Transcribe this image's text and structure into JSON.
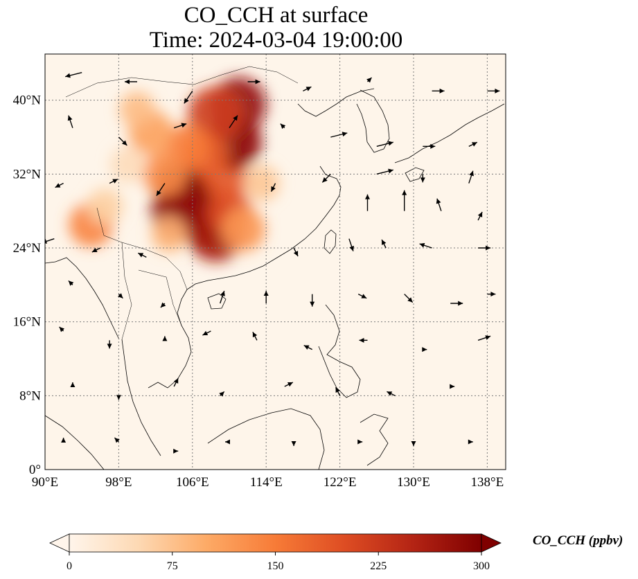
{
  "title": {
    "line1": "CO_CCH at surface",
    "line2": "Time: 2024-03-04 19:00:00"
  },
  "map": {
    "lon_range": [
      90,
      140
    ],
    "lat_range": [
      0,
      45
    ],
    "lon_ticks": [
      {
        "value": 90,
        "label": "90°E"
      },
      {
        "value": 98,
        "label": "98°E"
      },
      {
        "value": 106,
        "label": "106°E"
      },
      {
        "value": 114,
        "label": "114°E"
      },
      {
        "value": 122,
        "label": "122°E"
      },
      {
        "value": 130,
        "label": "130°E"
      },
      {
        "value": 138,
        "label": "138°E"
      }
    ],
    "lat_ticks": [
      {
        "value": 0,
        "label": "0°"
      },
      {
        "value": 8,
        "label": "8°N"
      },
      {
        "value": 16,
        "label": "16°N"
      },
      {
        "value": 24,
        "label": "24°N"
      },
      {
        "value": 32,
        "label": "32°N"
      },
      {
        "value": 40,
        "label": "40°N"
      }
    ],
    "grid": "dotted",
    "plume_cells": [
      {
        "lon": 106.5,
        "lat": 29.0,
        "val": 300
      },
      {
        "lon": 105.0,
        "lat": 30.5,
        "val": 300
      },
      {
        "lon": 107.5,
        "lat": 27.0,
        "val": 300
      },
      {
        "lon": 108.5,
        "lat": 25.5,
        "val": 260
      },
      {
        "lon": 104.5,
        "lat": 28.0,
        "val": 280
      },
      {
        "lon": 110.0,
        "lat": 28.0,
        "val": 200
      },
      {
        "lon": 109.5,
        "lat": 31.5,
        "val": 190
      },
      {
        "lon": 110.5,
        "lat": 35.5,
        "val": 290
      },
      {
        "lon": 111.0,
        "lat": 39.5,
        "val": 280
      },
      {
        "lon": 108.5,
        "lat": 38.5,
        "val": 220
      },
      {
        "lon": 107.5,
        "lat": 34.0,
        "val": 180
      },
      {
        "lon": 105.5,
        "lat": 35.0,
        "val": 150
      },
      {
        "lon": 101.5,
        "lat": 36.5,
        "val": 110
      },
      {
        "lon": 100.0,
        "lat": 39.0,
        "val": 80
      },
      {
        "lon": 103.0,
        "lat": 32.0,
        "val": 130
      },
      {
        "lon": 95.0,
        "lat": 26.5,
        "val": 140
      },
      {
        "lon": 96.5,
        "lat": 28.5,
        "val": 60
      },
      {
        "lon": 103.5,
        "lat": 25.5,
        "val": 90
      },
      {
        "lon": 111.5,
        "lat": 26.0,
        "val": 120
      },
      {
        "lon": 113.5,
        "lat": 31.0,
        "val": 70
      },
      {
        "lon": 99.0,
        "lat": 33.0,
        "val": 45
      }
    ],
    "wind_vectors": [
      {
        "lon": 94,
        "lat": 43,
        "u": -4,
        "v": -1
      },
      {
        "lon": 100,
        "lat": 42,
        "u": -3,
        "v": 0
      },
      {
        "lon": 106,
        "lat": 41,
        "u": -2,
        "v": -3
      },
      {
        "lon": 112,
        "lat": 42,
        "u": 3,
        "v": 0
      },
      {
        "lon": 118,
        "lat": 41,
        "u": 2,
        "v": 1
      },
      {
        "lon": 125,
        "lat": 42,
        "u": 1,
        "v": 1
      },
      {
        "lon": 132,
        "lat": 41,
        "u": 3,
        "v": 0
      },
      {
        "lon": 138,
        "lat": 41,
        "u": 3,
        "v": 0
      },
      {
        "lon": 93,
        "lat": 37,
        "u": -1,
        "v": 3
      },
      {
        "lon": 98,
        "lat": 36,
        "u": 2,
        "v": -2
      },
      {
        "lon": 104,
        "lat": 37,
        "u": 3,
        "v": 1
      },
      {
        "lon": 110,
        "lat": 37,
        "u": 2,
        "v": 3
      },
      {
        "lon": 116,
        "lat": 37,
        "u": -1,
        "v": 1
      },
      {
        "lon": 121,
        "lat": 36,
        "u": 4,
        "v": 1
      },
      {
        "lon": 126,
        "lat": 35,
        "u": 4,
        "v": 1
      },
      {
        "lon": 131,
        "lat": 35,
        "u": 3,
        "v": 0
      },
      {
        "lon": 136,
        "lat": 35,
        "u": 2,
        "v": 1
      },
      {
        "lon": 92,
        "lat": 31,
        "u": -2,
        "v": -1
      },
      {
        "lon": 97,
        "lat": 31,
        "u": 2,
        "v": 1
      },
      {
        "lon": 103,
        "lat": 31,
        "u": -2,
        "v": -3
      },
      {
        "lon": 115,
        "lat": 31,
        "u": -1,
        "v": -2
      },
      {
        "lon": 121,
        "lat": 32,
        "u": -2,
        "v": -2
      },
      {
        "lon": 126,
        "lat": 32,
        "u": 4,
        "v": 1
      },
      {
        "lon": 131,
        "lat": 32,
        "u": 0,
        "v": -2
      },
      {
        "lon": 136,
        "lat": 31,
        "u": 1,
        "v": 3
      },
      {
        "lon": 125,
        "lat": 28,
        "u": 0,
        "v": 4
      },
      {
        "lon": 129,
        "lat": 28,
        "u": 0,
        "v": 5
      },
      {
        "lon": 133,
        "lat": 28,
        "u": -1,
        "v": 3
      },
      {
        "lon": 137,
        "lat": 27,
        "u": 1,
        "v": 2
      },
      {
        "lon": 91,
        "lat": 25,
        "u": -3,
        "v": -1
      },
      {
        "lon": 96,
        "lat": 24,
        "u": -2,
        "v": -1
      },
      {
        "lon": 101,
        "lat": 23,
        "u": -2,
        "v": 1
      },
      {
        "lon": 117,
        "lat": 24,
        "u": 1,
        "v": -2
      },
      {
        "lon": 123,
        "lat": 25,
        "u": 1,
        "v": -3
      },
      {
        "lon": 127,
        "lat": 24,
        "u": -1,
        "v": 2
      },
      {
        "lon": 132,
        "lat": 24,
        "u": -3,
        "v": 1
      },
      {
        "lon": 137,
        "lat": 24,
        "u": 3,
        "v": 0
      },
      {
        "lon": 93,
        "lat": 20,
        "u": -1,
        "v": 1
      },
      {
        "lon": 98,
        "lat": 19,
        "u": 1,
        "v": -1
      },
      {
        "lon": 103,
        "lat": 18,
        "u": -1,
        "v": -1
      },
      {
        "lon": 109,
        "lat": 18,
        "u": 1,
        "v": 3
      },
      {
        "lon": 114,
        "lat": 18,
        "u": 0,
        "v": 3
      },
      {
        "lon": 119,
        "lat": 19,
        "u": 0,
        "v": -3
      },
      {
        "lon": 124,
        "lat": 19,
        "u": 2,
        "v": -1
      },
      {
        "lon": 129,
        "lat": 19,
        "u": 2,
        "v": -2
      },
      {
        "lon": 134,
        "lat": 18,
        "u": 3,
        "v": 0
      },
      {
        "lon": 138,
        "lat": 19,
        "u": 2,
        "v": 0
      },
      {
        "lon": 92,
        "lat": 15,
        "u": -1,
        "v": 1
      },
      {
        "lon": 97,
        "lat": 14,
        "u": 0,
        "v": -2
      },
      {
        "lon": 103,
        "lat": 14,
        "u": 0,
        "v": 1
      },
      {
        "lon": 108,
        "lat": 15,
        "u": -2,
        "v": -1
      },
      {
        "lon": 113,
        "lat": 14,
        "u": -1,
        "v": 2
      },
      {
        "lon": 119,
        "lat": 13,
        "u": -2,
        "v": 1
      },
      {
        "lon": 125,
        "lat": 14,
        "u": -2,
        "v": 0
      },
      {
        "lon": 131,
        "lat": 13,
        "u": 1,
        "v": 0
      },
      {
        "lon": 137,
        "lat": 14,
        "u": 3,
        "v": 1
      },
      {
        "lon": 93,
        "lat": 9,
        "u": 0,
        "v": 1
      },
      {
        "lon": 98,
        "lat": 8,
        "u": 0,
        "v": -1
      },
      {
        "lon": 104,
        "lat": 9,
        "u": 1,
        "v": 2
      },
      {
        "lon": 109,
        "lat": 8,
        "u": 1,
        "v": 1
      },
      {
        "lon": 116,
        "lat": 9,
        "u": 2,
        "v": 1
      },
      {
        "lon": 122,
        "lat": 8,
        "u": -1,
        "v": 2
      },
      {
        "lon": 128,
        "lat": 8,
        "u": -2,
        "v": 1
      },
      {
        "lon": 134,
        "lat": 9,
        "u": 1,
        "v": 0
      },
      {
        "lon": 92,
        "lat": 3,
        "u": 0,
        "v": 1
      },
      {
        "lon": 98,
        "lat": 3,
        "u": -1,
        "v": 1
      },
      {
        "lon": 104,
        "lat": 2,
        "u": 1,
        "v": 0
      },
      {
        "lon": 110,
        "lat": 3,
        "u": -1,
        "v": 0
      },
      {
        "lon": 117,
        "lat": 3,
        "u": 0,
        "v": -1
      },
      {
        "lon": 124,
        "lat": 3,
        "u": 1,
        "v": 0
      },
      {
        "lon": 130,
        "lat": 3,
        "u": 0,
        "v": -1
      },
      {
        "lon": 136,
        "lat": 3,
        "u": 1,
        "v": 0
      }
    ]
  },
  "colorbar": {
    "label": "CO_CCH (ppbv)",
    "min": 0,
    "max": 300,
    "extend": "both",
    "colors": [
      "#fff5eb",
      "#fdd9b4",
      "#fdaa66",
      "#f77b37",
      "#de4d23",
      "#b42414",
      "#7f0000"
    ],
    "ticks": [
      {
        "value": 0,
        "label": "0"
      },
      {
        "value": 75,
        "label": "75"
      },
      {
        "value": 150,
        "label": "150"
      },
      {
        "value": 225,
        "label": "225"
      },
      {
        "value": 300,
        "label": "300"
      }
    ]
  },
  "colors": {
    "background": "#fef5ea",
    "grid": "#7a7a7a",
    "coast": "#000000",
    "arrow": "#000000"
  }
}
